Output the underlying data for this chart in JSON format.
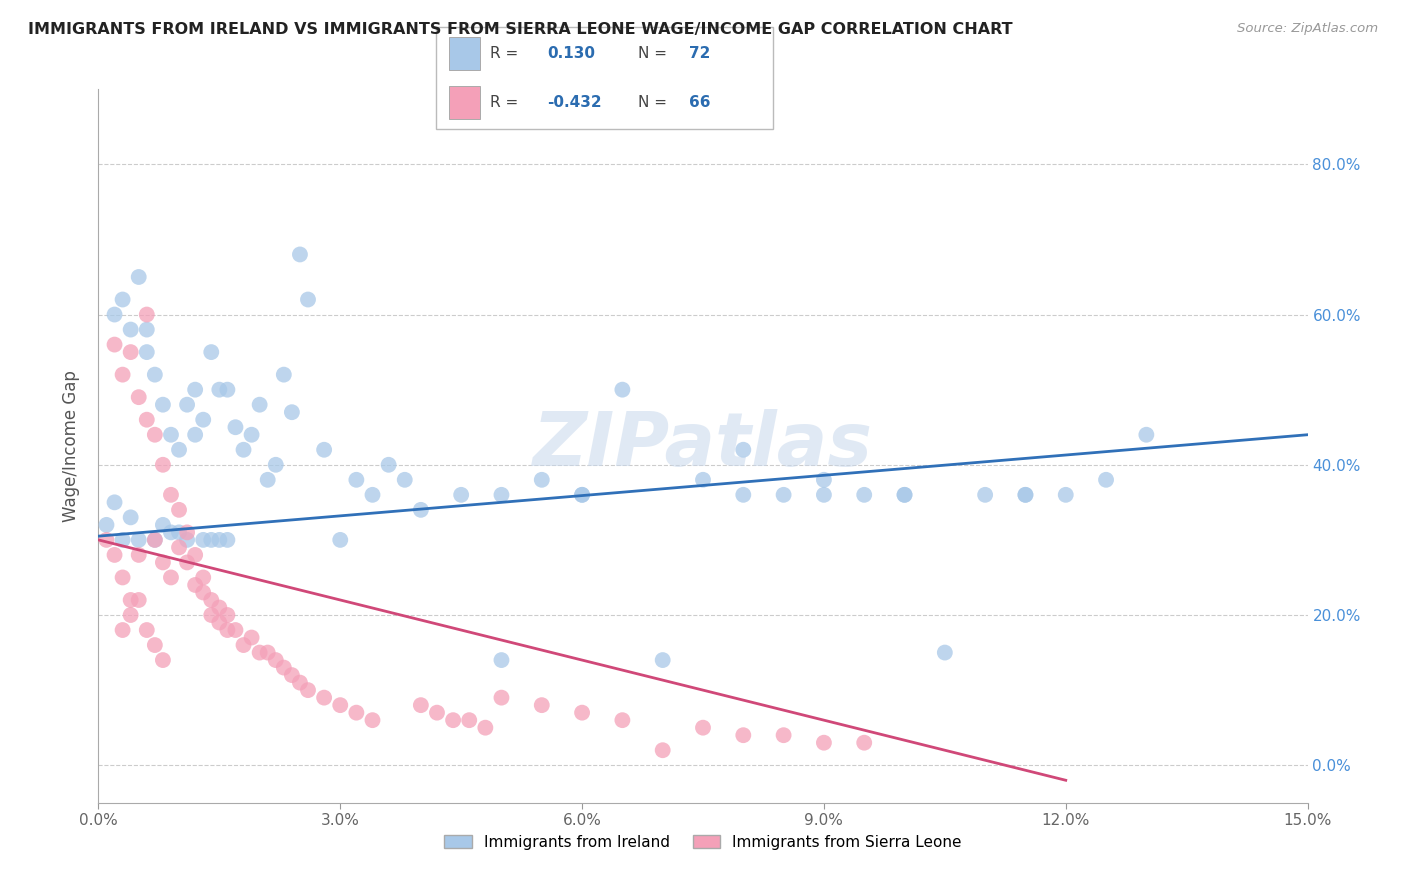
{
  "title": "IMMIGRANTS FROM IRELAND VS IMMIGRANTS FROM SIERRA LEONE WAGE/INCOME GAP CORRELATION CHART",
  "source": "Source: ZipAtlas.com",
  "ylabel": "Wage/Income Gap",
  "xlim": [
    0.0,
    0.15
  ],
  "ylim": [
    -0.05,
    0.9
  ],
  "xticks": [
    0.0,
    0.03,
    0.06,
    0.09,
    0.12,
    0.15
  ],
  "xticklabels": [
    "0.0%",
    "3.0%",
    "6.0%",
    "9.0%",
    "12.0%",
    "15.0%"
  ],
  "yticks": [
    0.0,
    0.2,
    0.4,
    0.6,
    0.8
  ],
  "yticklabels": [
    "0.0%",
    "20.0%",
    "40.0%",
    "60.0%",
    "80.0%"
  ],
  "ireland_color": "#a8c8e8",
  "ireland_line_color": "#3070b8",
  "sierra_leone_color": "#f4a0b8",
  "sierra_leone_line_color": "#d04878",
  "ireland_R": 0.13,
  "ireland_N": 72,
  "sierra_leone_R": -0.432,
  "sierra_leone_N": 66,
  "watermark": "ZIPatlas",
  "ireland_scatter_x": [
    0.001,
    0.002,
    0.002,
    0.003,
    0.003,
    0.004,
    0.004,
    0.005,
    0.005,
    0.006,
    0.006,
    0.007,
    0.007,
    0.008,
    0.008,
    0.009,
    0.009,
    0.01,
    0.01,
    0.011,
    0.011,
    0.012,
    0.012,
    0.013,
    0.013,
    0.014,
    0.014,
    0.015,
    0.015,
    0.016,
    0.016,
    0.017,
    0.018,
    0.019,
    0.02,
    0.021,
    0.022,
    0.023,
    0.024,
    0.025,
    0.026,
    0.028,
    0.03,
    0.032,
    0.034,
    0.036,
    0.038,
    0.04,
    0.045,
    0.05,
    0.055,
    0.06,
    0.065,
    0.07,
    0.075,
    0.08,
    0.085,
    0.09,
    0.095,
    0.1,
    0.105,
    0.11,
    0.115,
    0.12,
    0.125,
    0.13,
    0.1,
    0.115,
    0.09,
    0.08,
    0.06,
    0.05
  ],
  "ireland_scatter_y": [
    0.32,
    0.35,
    0.6,
    0.3,
    0.62,
    0.58,
    0.33,
    0.65,
    0.3,
    0.55,
    0.58,
    0.52,
    0.3,
    0.48,
    0.32,
    0.44,
    0.31,
    0.42,
    0.31,
    0.48,
    0.3,
    0.5,
    0.44,
    0.46,
    0.3,
    0.55,
    0.3,
    0.5,
    0.3,
    0.5,
    0.3,
    0.45,
    0.42,
    0.44,
    0.48,
    0.38,
    0.4,
    0.52,
    0.47,
    0.68,
    0.62,
    0.42,
    0.3,
    0.38,
    0.36,
    0.4,
    0.38,
    0.34,
    0.36,
    0.14,
    0.38,
    0.36,
    0.5,
    0.14,
    0.38,
    0.42,
    0.36,
    0.38,
    0.36,
    0.36,
    0.15,
    0.36,
    0.36,
    0.36,
    0.38,
    0.44,
    0.36,
    0.36,
    0.36,
    0.36,
    0.36,
    0.36
  ],
  "sierra_leone_scatter_x": [
    0.001,
    0.002,
    0.002,
    0.003,
    0.003,
    0.004,
    0.004,
    0.005,
    0.005,
    0.006,
    0.006,
    0.007,
    0.007,
    0.008,
    0.008,
    0.009,
    0.009,
    0.01,
    0.01,
    0.011,
    0.011,
    0.012,
    0.012,
    0.013,
    0.013,
    0.014,
    0.014,
    0.015,
    0.015,
    0.016,
    0.016,
    0.017,
    0.018,
    0.019,
    0.02,
    0.021,
    0.022,
    0.023,
    0.024,
    0.025,
    0.026,
    0.028,
    0.03,
    0.032,
    0.034,
    0.05,
    0.055,
    0.06,
    0.065,
    0.07,
    0.075,
    0.08,
    0.085,
    0.09,
    0.095,
    0.04,
    0.042,
    0.044,
    0.046,
    0.048,
    0.003,
    0.004,
    0.005,
    0.006,
    0.007,
    0.008
  ],
  "sierra_leone_scatter_y": [
    0.3,
    0.28,
    0.56,
    0.25,
    0.52,
    0.55,
    0.22,
    0.49,
    0.28,
    0.46,
    0.6,
    0.44,
    0.3,
    0.4,
    0.27,
    0.36,
    0.25,
    0.34,
    0.29,
    0.31,
    0.27,
    0.28,
    0.24,
    0.25,
    0.23,
    0.22,
    0.2,
    0.21,
    0.19,
    0.2,
    0.18,
    0.18,
    0.16,
    0.17,
    0.15,
    0.15,
    0.14,
    0.13,
    0.12,
    0.11,
    0.1,
    0.09,
    0.08,
    0.07,
    0.06,
    0.09,
    0.08,
    0.07,
    0.06,
    0.02,
    0.05,
    0.04,
    0.04,
    0.03,
    0.03,
    0.08,
    0.07,
    0.06,
    0.06,
    0.05,
    0.18,
    0.2,
    0.22,
    0.18,
    0.16,
    0.14
  ],
  "ireland_line_x": [
    0.0,
    0.15
  ],
  "ireland_line_y": [
    0.305,
    0.44
  ],
  "sierra_leone_line_x": [
    0.0,
    0.12
  ],
  "sierra_leone_line_y": [
    0.3,
    -0.02
  ]
}
